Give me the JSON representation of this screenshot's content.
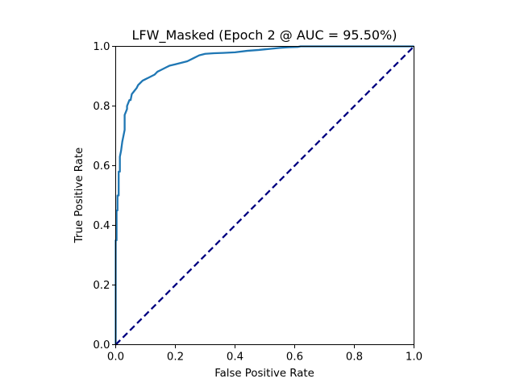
{
  "chart_data": {
    "type": "line",
    "title": "LFW_Masked (Epoch 2 @ AUC = 95.50%)",
    "xlabel": "False Positive Rate",
    "ylabel": "True Positive Rate",
    "xlim": [
      0.0,
      1.0
    ],
    "ylim": [
      0.0,
      1.0
    ],
    "xticks": [
      "0.0",
      "0.2",
      "0.4",
      "0.6",
      "0.8",
      "1.0"
    ],
    "yticks": [
      "0.0",
      "0.2",
      "0.4",
      "0.6",
      "0.8",
      "1.0"
    ],
    "grid": false,
    "legend": "none",
    "series": [
      {
        "color": "#1f77b4",
        "style": "solid",
        "x": [
          0.0,
          0.0,
          0.003,
          0.003,
          0.006,
          0.006,
          0.01,
          0.01,
          0.014,
          0.014,
          0.018,
          0.022,
          0.026,
          0.03,
          0.03,
          0.034,
          0.038,
          0.038,
          0.042,
          0.046,
          0.05,
          0.054,
          0.058,
          0.062,
          0.066,
          0.07,
          0.075,
          0.08,
          0.09,
          0.1,
          0.11,
          0.12,
          0.13,
          0.14,
          0.15,
          0.16,
          0.17,
          0.18,
          0.2,
          0.22,
          0.24,
          0.26,
          0.28,
          0.3,
          0.33,
          0.36,
          0.4,
          0.44,
          0.48,
          0.5,
          0.52,
          0.55,
          0.58,
          0.61,
          0.62,
          0.65,
          0.7,
          0.8,
          0.9,
          1.0
        ],
        "y": [
          0.0,
          0.35,
          0.35,
          0.45,
          0.45,
          0.5,
          0.5,
          0.58,
          0.58,
          0.63,
          0.65,
          0.68,
          0.7,
          0.72,
          0.77,
          0.78,
          0.79,
          0.8,
          0.81,
          0.82,
          0.82,
          0.84,
          0.845,
          0.85,
          0.855,
          0.86,
          0.87,
          0.875,
          0.885,
          0.89,
          0.895,
          0.9,
          0.905,
          0.915,
          0.92,
          0.925,
          0.93,
          0.935,
          0.94,
          0.945,
          0.95,
          0.96,
          0.97,
          0.975,
          0.977,
          0.978,
          0.98,
          0.985,
          0.988,
          0.99,
          0.992,
          0.995,
          0.997,
          0.998,
          1.0,
          1.0,
          1.0,
          1.0,
          1.0,
          1.0
        ]
      },
      {
        "color": "#000080",
        "style": "dashed",
        "x": [
          0.0,
          1.0
        ],
        "y": [
          0.0,
          1.0
        ]
      }
    ]
  }
}
